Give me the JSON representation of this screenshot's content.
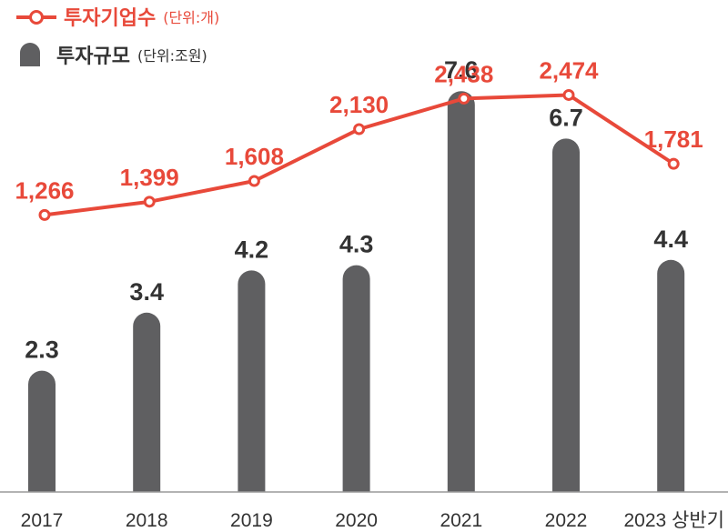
{
  "chart_data": {
    "type": "bar+line",
    "categories": [
      "2017",
      "2018",
      "2019",
      "2020",
      "2021",
      "2022",
      "2023 상반기"
    ],
    "series": [
      {
        "name": "투자규모",
        "unit": "(단위:조원)",
        "kind": "bar",
        "values": [
          2.3,
          3.4,
          4.2,
          4.3,
          7.6,
          6.7,
          4.4
        ],
        "labels": [
          "2.3",
          "3.4",
          "4.2",
          "4.3",
          "7.6",
          "6.7",
          "4.4"
        ],
        "color": "#5f5f61"
      },
      {
        "name": "투자기업수",
        "unit": "(단위:개)",
        "kind": "line",
        "values": [
          1266,
          1399,
          1608,
          2130,
          2438,
          2474,
          1781
        ],
        "labels": [
          "1,266",
          "1,399",
          "1,608",
          "2,130",
          "2,438",
          "2,474",
          "1,781"
        ],
        "color": "#e8493a"
      }
    ],
    "bar_ylim": [
      0,
      8
    ],
    "line_ylim": [
      0,
      2600
    ],
    "grid": false,
    "legend_position": "top-left"
  }
}
